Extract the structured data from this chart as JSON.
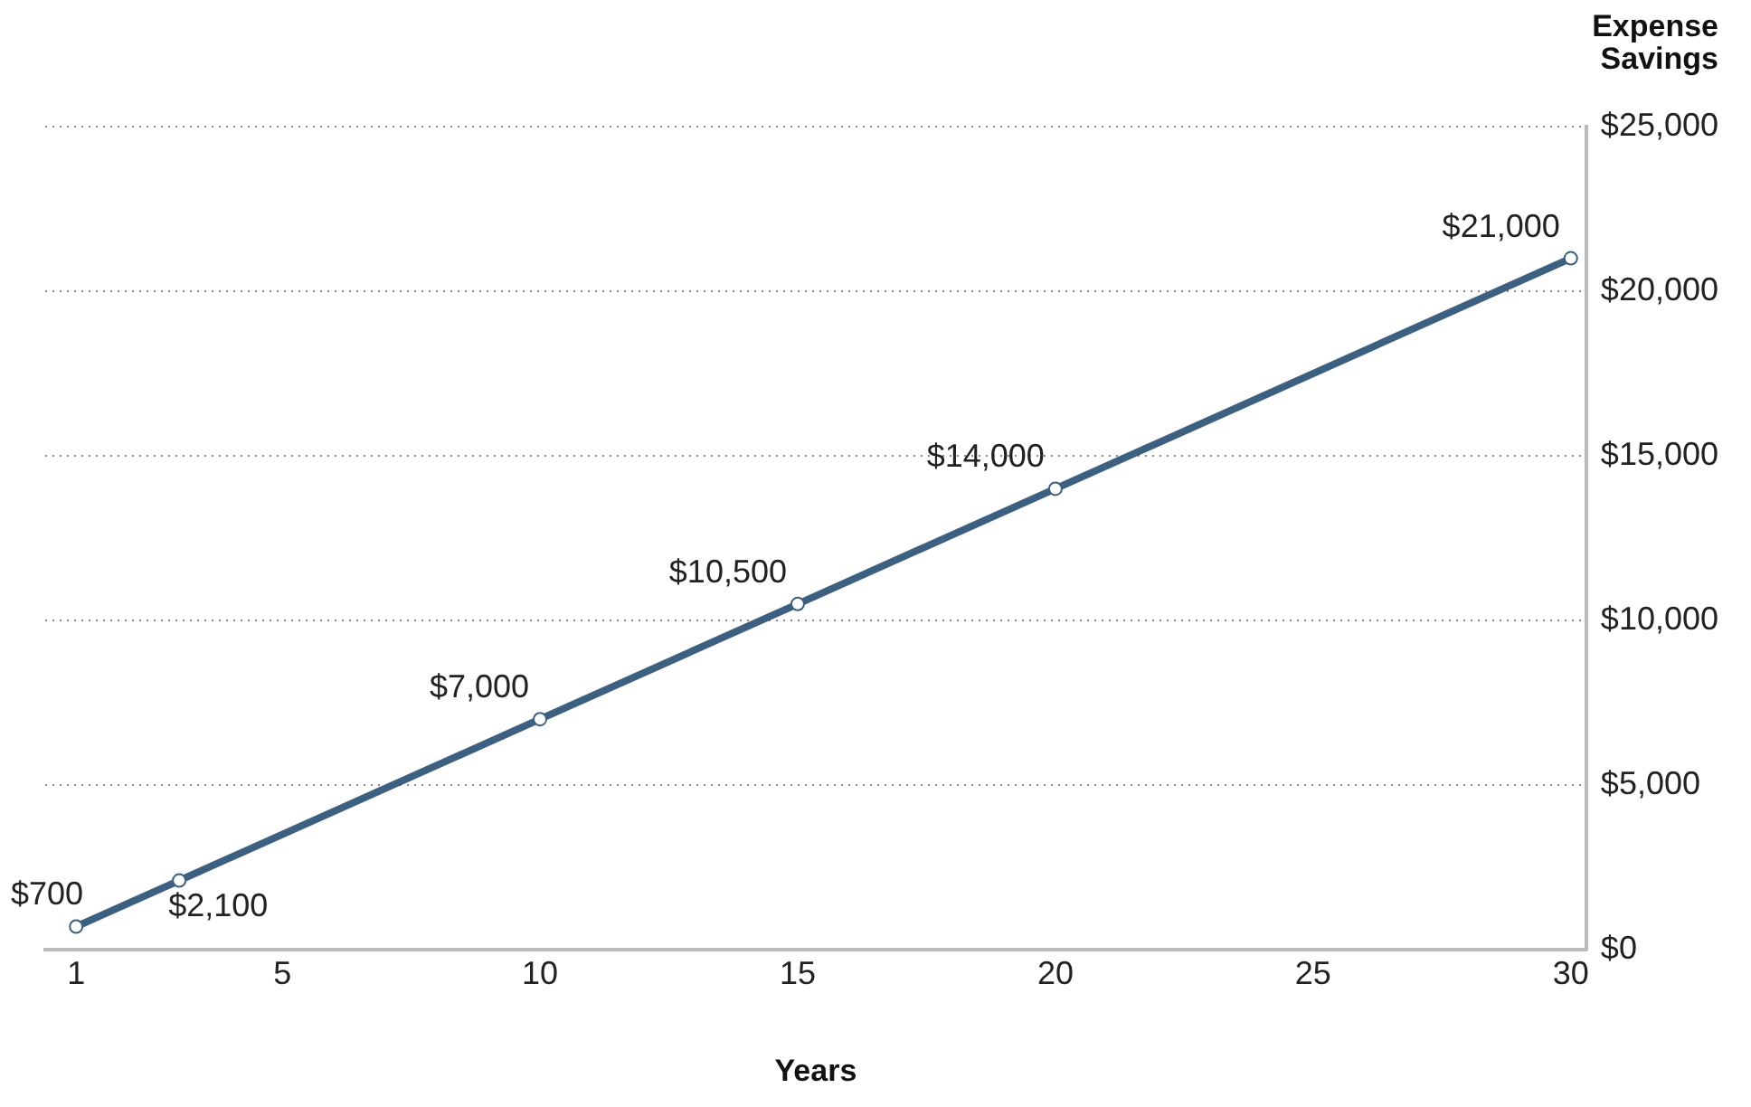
{
  "chart_data": {
    "type": "line",
    "xlabel": "Years",
    "ylabel": "Expense Savings",
    "x": [
      1,
      3,
      10,
      15,
      20,
      30
    ],
    "series": [
      {
        "color": "#3d6080",
        "values": [
          700,
          2100,
          7000,
          10500,
          14000,
          21000
        ],
        "value_labels": [
          "$700",
          "$2,100",
          "$7,000",
          "$10,500",
          "$14,000",
          "$21,000"
        ]
      }
    ],
    "xlim": [
      0.4,
      30.3
    ],
    "xticks": [
      1,
      5,
      10,
      15,
      20,
      25,
      30
    ],
    "ylim": [
      0,
      25000
    ],
    "yticks": [
      {
        "value": 0,
        "label": "$0"
      },
      {
        "value": 5000,
        "label": "$5,000"
      },
      {
        "value": 10000,
        "label": "$10,000"
      },
      {
        "value": 15000,
        "label": "$15,000"
      },
      {
        "value": 20000,
        "label": "$20,000"
      },
      {
        "value": 25000,
        "label": "$25,000"
      }
    ],
    "grid": "y",
    "legend": false,
    "marker": "circle",
    "line_style": "solid"
  }
}
